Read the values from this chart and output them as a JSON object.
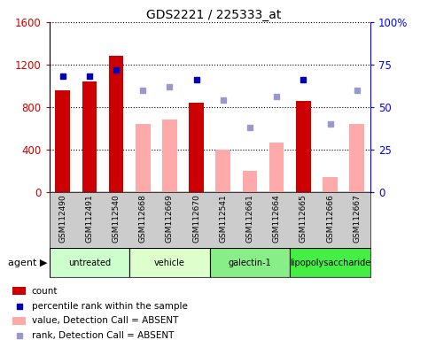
{
  "title": "GDS2221 / 225333_at",
  "samples": [
    "GSM112490",
    "GSM112491",
    "GSM112540",
    "GSM112668",
    "GSM112669",
    "GSM112670",
    "GSM112541",
    "GSM112661",
    "GSM112664",
    "GSM112665",
    "GSM112666",
    "GSM112667"
  ],
  "groups": [
    {
      "label": "untreated",
      "color": "#ccffcc",
      "indices": [
        0,
        1,
        2
      ]
    },
    {
      "label": "vehicle",
      "color": "#ddffcc",
      "indices": [
        3,
        4,
        5
      ]
    },
    {
      "label": "galectin-1",
      "color": "#88ee88",
      "indices": [
        6,
        7,
        8
      ]
    },
    {
      "label": "lipopolysaccharide",
      "color": "#44ee44",
      "indices": [
        9,
        10,
        11
      ]
    }
  ],
  "bar_values": [
    960,
    1040,
    1280,
    null,
    null,
    840,
    null,
    null,
    null,
    860,
    null,
    null
  ],
  "bar_absent_values": [
    null,
    null,
    null,
    640,
    680,
    null,
    400,
    200,
    470,
    null,
    140,
    640
  ],
  "percentile_present_pct": [
    68,
    68,
    72,
    null,
    null,
    66,
    null,
    null,
    null,
    66,
    null,
    null
  ],
  "percentile_absent_pct": [
    null,
    null,
    null,
    60,
    62,
    null,
    54,
    38,
    56,
    null,
    40,
    60
  ],
  "ylim_left": [
    0,
    1600
  ],
  "ylim_right": [
    0,
    100
  ],
  "yticks_left": [
    0,
    400,
    800,
    1200,
    1600
  ],
  "yticks_right": [
    0,
    25,
    50,
    75,
    100
  ],
  "bar_color_present": "#cc0000",
  "bar_color_absent": "#ffaaaa",
  "dot_color_present": "#0000bb",
  "dot_color_absent": "#9999cc",
  "grid_color": "#000000"
}
